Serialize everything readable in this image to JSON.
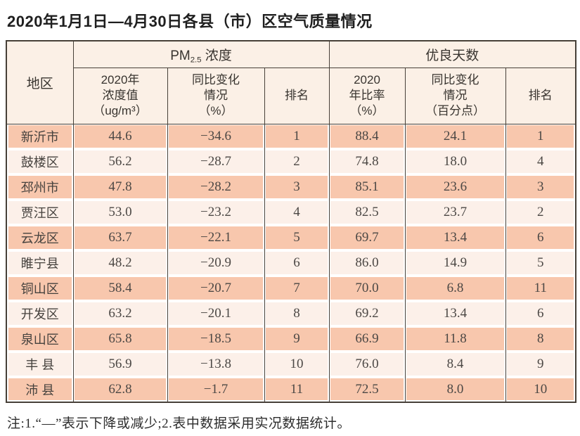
{
  "page": {
    "title": "2020年1月1日—4月30日各县（市）区空气质量情况",
    "note": "注:1.“—”表示下降或减少;2.表中数据采用实况数据统计。"
  },
  "colors": {
    "border": "#474038",
    "row_odd": "#f8c7ad",
    "row_even": "#fcf0e9",
    "header_bg": "#fbf0e6"
  },
  "table": {
    "corner_header": "地区",
    "pm_group": {
      "prefix": "PM",
      "sub": "2.5",
      "suffix": " 浓度"
    },
    "good_days_group": "优良天数",
    "columns": [
      {
        "id": "pm-2020-value",
        "lines": [
          "2020年",
          "浓度值",
          "（ug/m³）"
        ]
      },
      {
        "id": "pm-yoy-change",
        "lines": [
          "同比变化",
          "情况",
          "（%）"
        ]
      },
      {
        "id": "pm-rank",
        "lines": [
          "排名"
        ]
      },
      {
        "id": "gd-2020-ratio",
        "lines": [
          "2020",
          "年比率",
          "（%）"
        ]
      },
      {
        "id": "gd-yoy-change",
        "lines": [
          "同比变化",
          "情况",
          "（百分点）"
        ]
      },
      {
        "id": "gd-rank",
        "lines": [
          "排名"
        ]
      }
    ],
    "rows": [
      {
        "region": "新沂市",
        "values": [
          "44.6",
          "−34.6",
          "1",
          "88.4",
          "24.1",
          "1"
        ]
      },
      {
        "region": "鼓楼区",
        "values": [
          "56.2",
          "−28.7",
          "2",
          "74.8",
          "18.0",
          "4"
        ]
      },
      {
        "region": "邳州市",
        "values": [
          "47.8",
          "−28.2",
          "3",
          "85.1",
          "23.6",
          "3"
        ]
      },
      {
        "region": "贾汪区",
        "values": [
          "53.0",
          "−23.2",
          "4",
          "82.5",
          "23.7",
          "2"
        ]
      },
      {
        "region": "云龙区",
        "values": [
          "63.7",
          "−22.1",
          "5",
          "69.7",
          "13.4",
          "6"
        ]
      },
      {
        "region": "睢宁县",
        "values": [
          "48.2",
          "−20.9",
          "6",
          "86.0",
          "14.9",
          "5"
        ]
      },
      {
        "region": "铜山区",
        "values": [
          "58.4",
          "−20.7",
          "7",
          "70.0",
          "6.8",
          "11"
        ]
      },
      {
        "region": "开发区",
        "values": [
          "63.2",
          "−20.1",
          "8",
          "69.2",
          "13.4",
          "6"
        ]
      },
      {
        "region": "泉山区",
        "values": [
          "65.8",
          "−18.5",
          "9",
          "66.9",
          "11.8",
          "8"
        ]
      },
      {
        "region": "丰 县",
        "values": [
          "56.9",
          "−13.8",
          "10",
          "76.0",
          "8.4",
          "9"
        ]
      },
      {
        "region": "沛 县",
        "values": [
          "62.8",
          "−1.7",
          "11",
          "72.5",
          "8.0",
          "10"
        ]
      }
    ]
  }
}
